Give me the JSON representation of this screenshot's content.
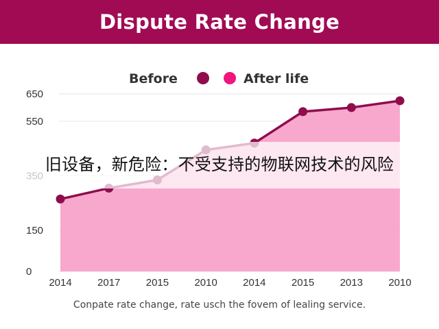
{
  "header": {
    "title": "Dispute Rate Change"
  },
  "legend": {
    "before_label": "Before",
    "after_label": "After life"
  },
  "caption": "Conpate rate change, rate usch the fovem of lealing service.",
  "overlay": {
    "text": "旧设备，新危险：不受支持的物联网技术的风险"
  },
  "colors": {
    "header": "#a10b54",
    "line": "#8f0d4c",
    "area": "#f7a1c9",
    "before_marker": "#8f0d4c",
    "after_marker": "#f0157d"
  },
  "chart_data": {
    "type": "area",
    "categories": [
      "2014",
      "2017",
      "2015",
      "2010",
      "2014",
      "2015",
      "2013",
      "2010"
    ],
    "series": [
      {
        "values": [
          265,
          305,
          335,
          445,
          470,
          585,
          600,
          625
        ]
      }
    ],
    "y_ticks": [
      0,
      150,
      350,
      550,
      650
    ],
    "ylim": [
      0,
      650
    ],
    "grid": true,
    "legend_position": "top-center",
    "title": "",
    "xlabel": "",
    "ylabel": ""
  }
}
